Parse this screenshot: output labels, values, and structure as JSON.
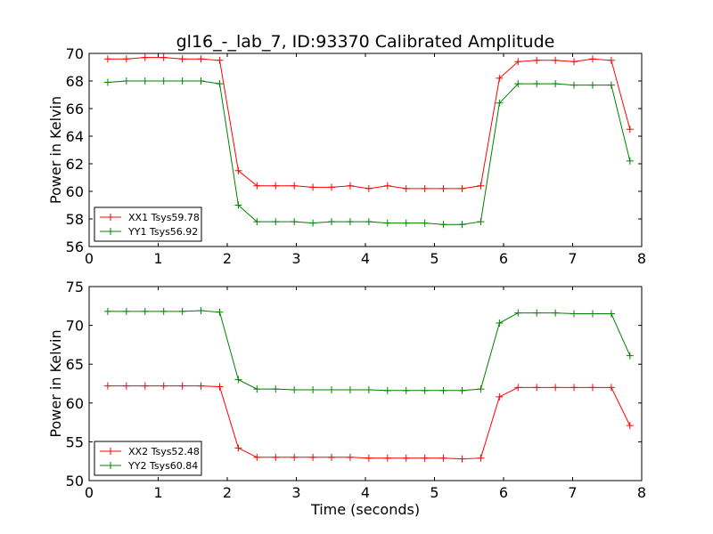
{
  "figure": {
    "title": "gl16_-_lab_7, ID:93370 Calibrated Amplitude"
  },
  "chart_data": [
    {
      "type": "line",
      "title": "gl16_-_lab_7, ID:93370 Calibrated Amplitude",
      "xlabel": "",
      "ylabel": "Power in Kelvin",
      "xlim": [
        0,
        8
      ],
      "ylim": [
        56,
        70
      ],
      "xticks": [
        0,
        1,
        2,
        3,
        4,
        5,
        6,
        7,
        8
      ],
      "yticks": [
        56,
        58,
        60,
        62,
        64,
        66,
        68,
        70
      ],
      "grid": false,
      "legend_position": "lower-left",
      "x": [
        0.27,
        0.54,
        0.81,
        1.08,
        1.35,
        1.62,
        1.89,
        2.16,
        2.43,
        2.7,
        2.97,
        3.24,
        3.51,
        3.78,
        4.05,
        4.32,
        4.59,
        4.86,
        5.13,
        5.4,
        5.67,
        5.94,
        6.21,
        6.48,
        6.75,
        7.02,
        7.29,
        7.56,
        7.83
      ],
      "series": [
        {
          "name": "XX1 Tsys59.78",
          "color": "#ff0000",
          "values": [
            69.6,
            69.6,
            69.7,
            69.7,
            69.6,
            69.6,
            69.5,
            61.5,
            60.4,
            60.4,
            60.4,
            60.3,
            60.3,
            60.4,
            60.2,
            60.4,
            60.2,
            60.2,
            60.2,
            60.2,
            60.4,
            68.2,
            69.4,
            69.5,
            69.5,
            69.4,
            69.6,
            69.5,
            64.5
          ]
        },
        {
          "name": "YY1 Tsys56.92",
          "color": "#008000",
          "values": [
            67.9,
            68.0,
            68.0,
            68.0,
            68.0,
            68.0,
            67.8,
            59.0,
            57.8,
            57.8,
            57.8,
            57.7,
            57.8,
            57.8,
            57.8,
            57.7,
            57.7,
            57.7,
            57.6,
            57.6,
            57.8,
            66.4,
            67.8,
            67.8,
            67.8,
            67.7,
            67.7,
            67.7,
            62.2
          ]
        }
      ]
    },
    {
      "type": "line",
      "title": "",
      "xlabel": "Time (seconds)",
      "ylabel": "Power in Kelvin",
      "xlim": [
        0,
        8
      ],
      "ylim": [
        50,
        75
      ],
      "xticks": [
        0,
        1,
        2,
        3,
        4,
        5,
        6,
        7,
        8
      ],
      "yticks": [
        50,
        55,
        60,
        65,
        70,
        75
      ],
      "grid": false,
      "legend_position": "lower-left",
      "x": [
        0.27,
        0.54,
        0.81,
        1.08,
        1.35,
        1.62,
        1.89,
        2.16,
        2.43,
        2.7,
        2.97,
        3.24,
        3.51,
        3.78,
        4.05,
        4.32,
        4.59,
        4.86,
        5.13,
        5.4,
        5.67,
        5.94,
        6.21,
        6.48,
        6.75,
        7.02,
        7.29,
        7.56,
        7.83
      ],
      "series": [
        {
          "name": "XX2 Tsys52.48",
          "color": "#ff0000",
          "values": [
            62.2,
            62.2,
            62.2,
            62.2,
            62.2,
            62.2,
            62.1,
            54.2,
            53.0,
            53.0,
            53.0,
            53.0,
            53.0,
            53.0,
            52.9,
            52.9,
            52.9,
            52.9,
            52.9,
            52.8,
            52.9,
            60.8,
            62.0,
            62.0,
            62.0,
            62.0,
            62.0,
            62.0,
            57.1
          ]
        },
        {
          "name": "YY2 Tsys60.84",
          "color": "#008000",
          "values": [
            71.8,
            71.8,
            71.8,
            71.8,
            71.8,
            71.9,
            71.7,
            63.0,
            61.8,
            61.8,
            61.7,
            61.7,
            61.7,
            61.7,
            61.7,
            61.6,
            61.6,
            61.6,
            61.6,
            61.6,
            61.8,
            70.3,
            71.6,
            71.6,
            71.6,
            71.5,
            71.5,
            71.5,
            66.1
          ]
        }
      ]
    }
  ]
}
